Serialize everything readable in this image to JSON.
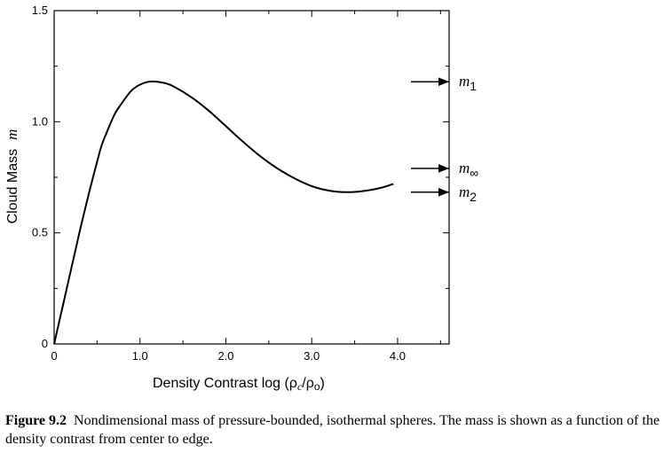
{
  "chart_data": {
    "type": "line",
    "title": "",
    "xlabel": "Density  Contrast   log (ρ_c/ρ_o)",
    "xlabel_parts": {
      "lead": "Density  Contrast   log (ρ",
      "sub1": "c",
      "mid": "/ρ",
      "sub2": "o",
      "tail": ")"
    },
    "ylabel": "Cloud  Mass   m",
    "ylabel_parts": {
      "text": "Cloud  Mass",
      "symbol": "m"
    },
    "xlim": [
      0,
      4.6
    ],
    "ylim": [
      0,
      1.5
    ],
    "x_ticks": [
      {
        "value": 0,
        "label": "0"
      },
      {
        "value": 1.0,
        "label": "1.0"
      },
      {
        "value": 2.0,
        "label": "2.0"
      },
      {
        "value": 3.0,
        "label": "3.0"
      },
      {
        "value": 4.0,
        "label": "4.0"
      }
    ],
    "y_ticks": [
      {
        "value": 0,
        "label": "0"
      },
      {
        "value": 0.5,
        "label": "0.5"
      },
      {
        "value": 1.0,
        "label": "1.0"
      },
      {
        "value": 1.5,
        "label": "1.5"
      }
    ],
    "series": [
      {
        "x": [
          0,
          0.1,
          0.2,
          0.3,
          0.4,
          0.5,
          0.55,
          0.6,
          0.7,
          0.8,
          0.9,
          1.0,
          1.1,
          1.2,
          1.3,
          1.4,
          1.6,
          1.8,
          2.0,
          2.2,
          2.4,
          2.6,
          2.8,
          3.0,
          3.2,
          3.4,
          3.6,
          3.8,
          3.95
        ],
        "y": [
          0,
          0.17,
          0.34,
          0.51,
          0.67,
          0.82,
          0.89,
          0.94,
          1.03,
          1.09,
          1.14,
          1.167,
          1.18,
          1.18,
          1.173,
          1.157,
          1.11,
          1.05,
          0.98,
          0.91,
          0.845,
          0.79,
          0.745,
          0.71,
          0.69,
          0.683,
          0.688,
          0.702,
          0.72
        ]
      }
    ],
    "annotations": [
      {
        "y": 1.18,
        "label": "m",
        "subscript": "1"
      },
      {
        "y": 0.79,
        "label": "m",
        "subscript": "∞"
      },
      {
        "y": 0.683,
        "label": "m",
        "subscript": "2"
      }
    ],
    "grid": false
  },
  "caption": {
    "label": "Figure 9.2",
    "text": "Nondimensional mass of pressure-bounded, isothermal spheres. The mass is shown as a function of the density contrast from center to edge."
  }
}
